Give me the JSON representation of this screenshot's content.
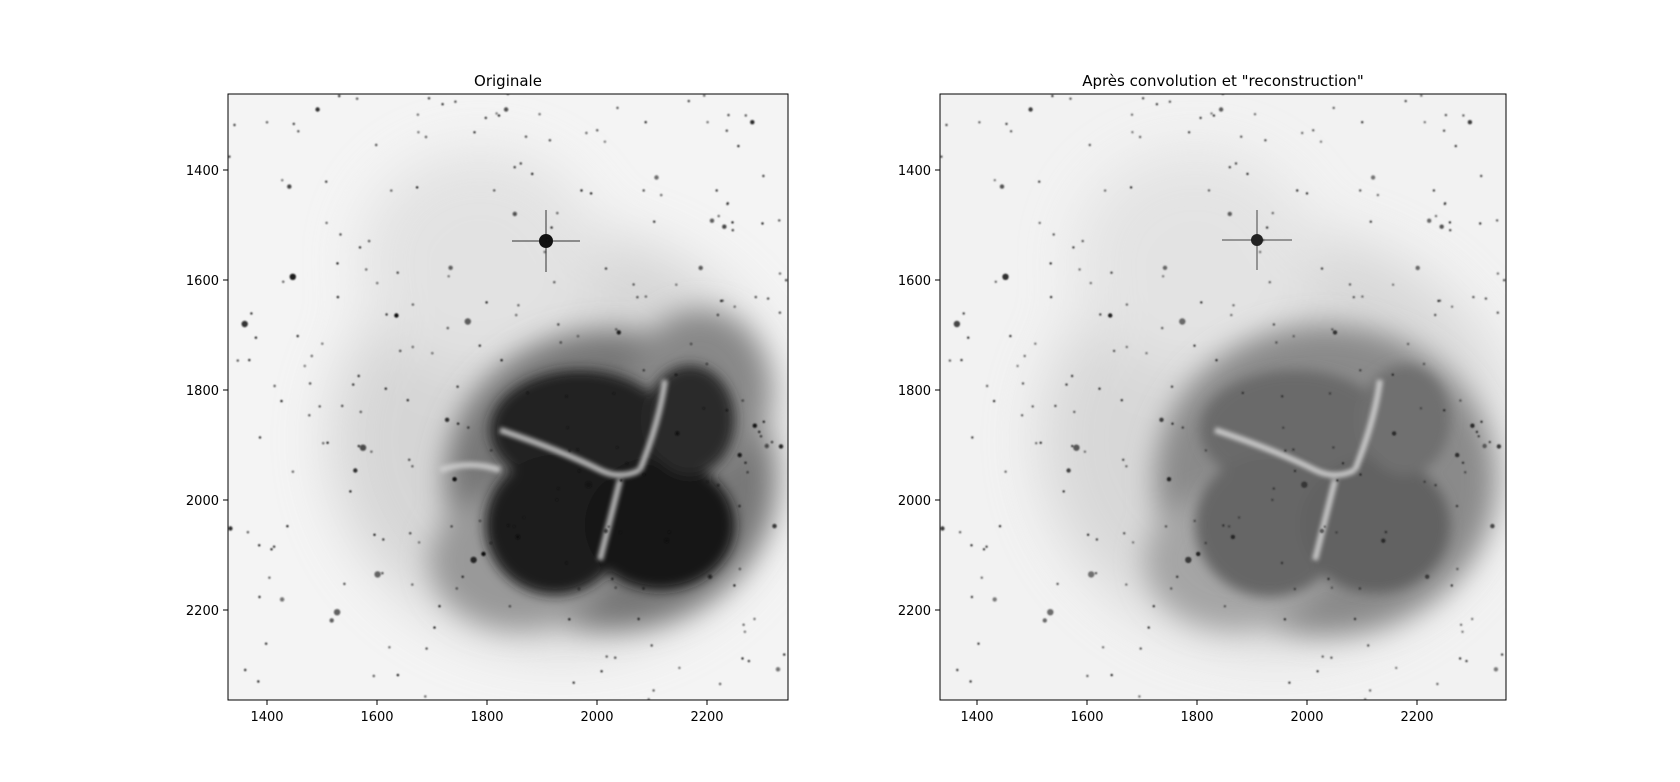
{
  "panels": [
    {
      "title": "Originale",
      "x_ticks": [
        "1400",
        "1600",
        "1800",
        "2000",
        "2200"
      ],
      "y_ticks": [
        "1400",
        "1600",
        "1800",
        "2000",
        "2200"
      ]
    },
    {
      "title": "Après convolution et \"reconstruction\"",
      "x_ticks": [
        "1400",
        "1600",
        "1800",
        "2000",
        "2200"
      ],
      "y_ticks": [
        "1400",
        "1600",
        "1800",
        "2000",
        "2200"
      ]
    }
  ],
  "colors": {
    "background": "#ffffff",
    "frame": "#000000",
    "nebula_dark": "#1a1a1a",
    "nebula_mid": "#6e6e6e"
  }
}
